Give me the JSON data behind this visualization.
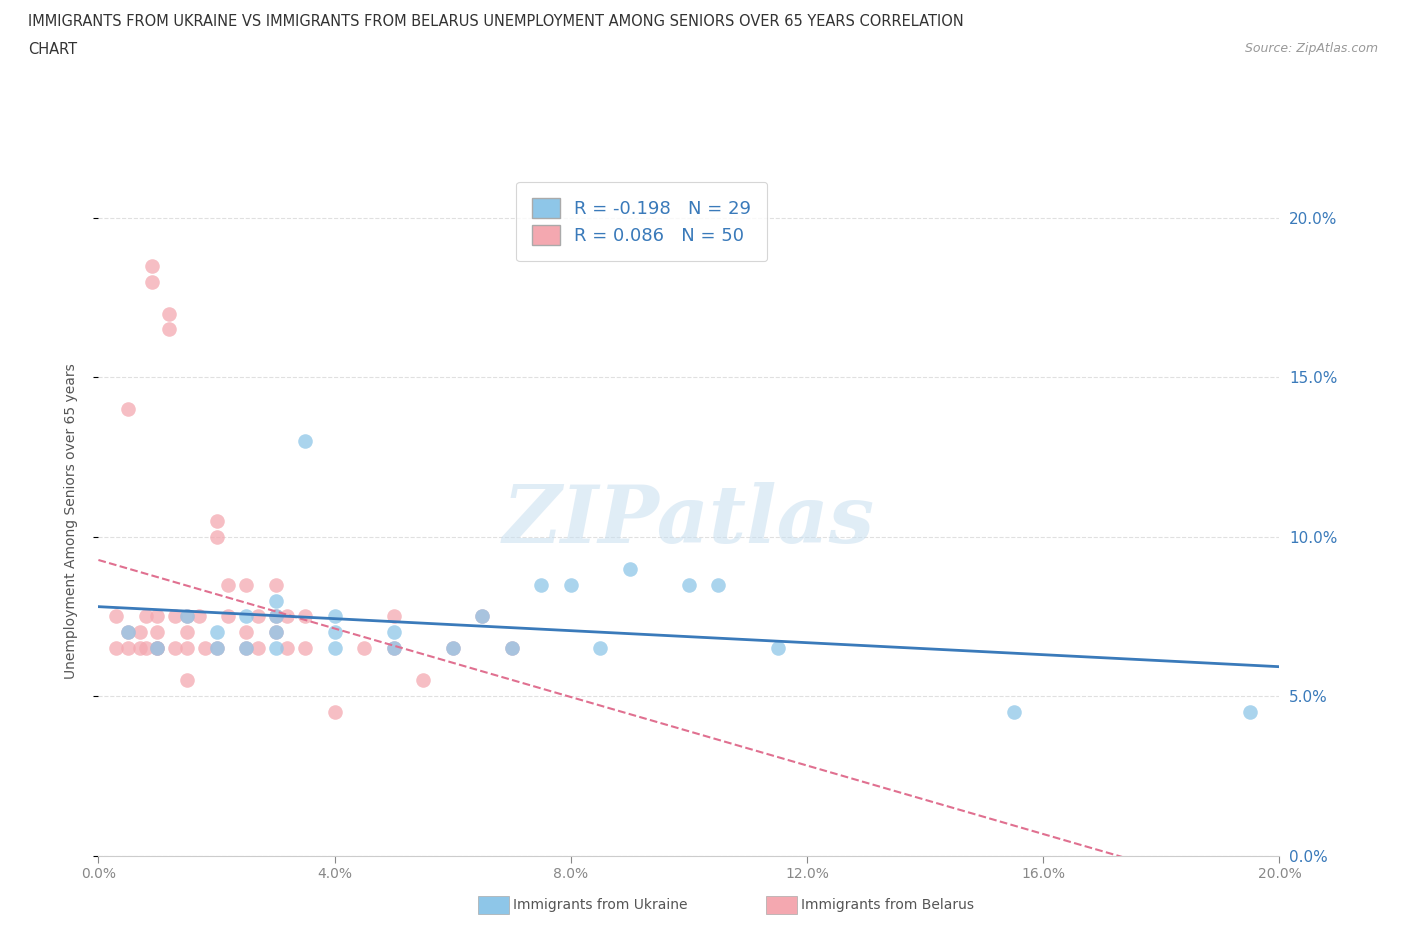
{
  "title_line1": "IMMIGRANTS FROM UKRAINE VS IMMIGRANTS FROM BELARUS UNEMPLOYMENT AMONG SENIORS OVER 65 YEARS CORRELATION",
  "title_line2": "CHART",
  "source_text": "Source: ZipAtlas.com",
  "ylabel": "Unemployment Among Seniors over 65 years",
  "xlim": [
    0.0,
    0.2
  ],
  "ylim": [
    0.0,
    0.21
  ],
  "x_ticks": [
    0.0,
    0.04,
    0.08,
    0.12,
    0.16,
    0.2
  ],
  "x_tick_labels": [
    "0.0%",
    "4.0%",
    "8.0%",
    "12.0%",
    "16.0%",
    "20.0%"
  ],
  "y_ticks": [
    0.0,
    0.05,
    0.1,
    0.15,
    0.2
  ],
  "y_tick_labels": [
    "0.0%",
    "5.0%",
    "10.0%",
    "15.0%",
    "20.0%"
  ],
  "ukraine_color": "#8ec6e8",
  "belarus_color": "#f4a8b0",
  "ukraine_line_color": "#3a7aba",
  "belarus_line_color": "#e07090",
  "ukraine_R": -0.198,
  "ukraine_N": 29,
  "belarus_R": 0.086,
  "belarus_N": 50,
  "watermark": "ZIPatlas",
  "ukraine_x": [
    0.005,
    0.01,
    0.015,
    0.02,
    0.02,
    0.025,
    0.025,
    0.03,
    0.03,
    0.03,
    0.03,
    0.035,
    0.04,
    0.04,
    0.04,
    0.05,
    0.05,
    0.06,
    0.065,
    0.07,
    0.075,
    0.08,
    0.085,
    0.09,
    0.1,
    0.105,
    0.115,
    0.155,
    0.195
  ],
  "ukraine_y": [
    0.07,
    0.065,
    0.075,
    0.065,
    0.07,
    0.065,
    0.075,
    0.065,
    0.07,
    0.075,
    0.08,
    0.13,
    0.065,
    0.07,
    0.075,
    0.065,
    0.07,
    0.065,
    0.075,
    0.065,
    0.085,
    0.085,
    0.065,
    0.09,
    0.085,
    0.085,
    0.065,
    0.045,
    0.045
  ],
  "belarus_x": [
    0.003,
    0.003,
    0.005,
    0.005,
    0.005,
    0.007,
    0.007,
    0.008,
    0.008,
    0.009,
    0.009,
    0.01,
    0.01,
    0.01,
    0.01,
    0.012,
    0.012,
    0.013,
    0.013,
    0.015,
    0.015,
    0.015,
    0.015,
    0.017,
    0.018,
    0.02,
    0.02,
    0.02,
    0.022,
    0.022,
    0.025,
    0.025,
    0.025,
    0.027,
    0.027,
    0.03,
    0.03,
    0.03,
    0.032,
    0.032,
    0.035,
    0.035,
    0.04,
    0.045,
    0.05,
    0.05,
    0.055,
    0.06,
    0.065,
    0.07
  ],
  "belarus_y": [
    0.065,
    0.075,
    0.07,
    0.14,
    0.065,
    0.065,
    0.07,
    0.075,
    0.065,
    0.18,
    0.185,
    0.065,
    0.07,
    0.075,
    0.065,
    0.165,
    0.17,
    0.065,
    0.075,
    0.075,
    0.07,
    0.065,
    0.055,
    0.075,
    0.065,
    0.105,
    0.1,
    0.065,
    0.085,
    0.075,
    0.085,
    0.07,
    0.065,
    0.075,
    0.065,
    0.085,
    0.075,
    0.07,
    0.075,
    0.065,
    0.075,
    0.065,
    0.045,
    0.065,
    0.075,
    0.065,
    0.055,
    0.065,
    0.075,
    0.065
  ],
  "background_color": "#ffffff",
  "grid_color": "#e0e0e0",
  "title_fontsize": 10.5,
  "axis_fontsize": 10,
  "tick_fontsize": 10,
  "legend_fontsize": 13
}
